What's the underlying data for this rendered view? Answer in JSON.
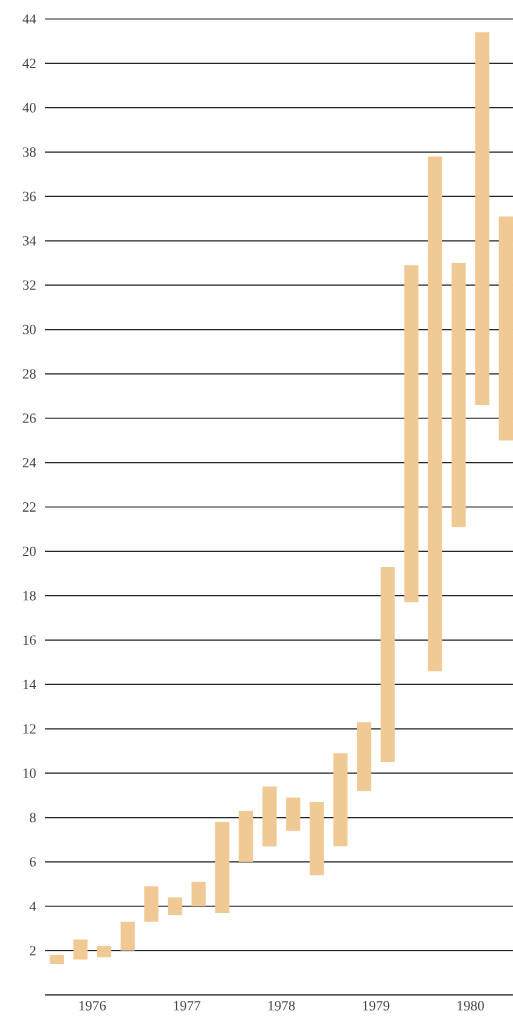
{
  "chart_data": {
    "type": "bar",
    "x": [
      1976.125,
      1976.375,
      1976.625,
      1976.875,
      1977.125,
      1977.375,
      1977.625,
      1977.875,
      1978.125,
      1978.375,
      1978.625,
      1978.875,
      1979.125,
      1979.375,
      1979.625,
      1979.875,
      1980.125,
      1980.375,
      1980.625,
      1980.875
    ],
    "base": [
      1.4,
      1.6,
      1.7,
      2.0,
      3.3,
      3.6,
      4.0,
      3.7,
      6.0,
      6.7,
      7.4,
      5.4,
      6.7,
      9.2,
      10.5,
      17.7,
      14.6,
      21.1,
      26.6,
      25.0
    ],
    "values": [
      0.4,
      0.9,
      0.5,
      1.3,
      1.6,
      0.8,
      1.1,
      4.1,
      2.3,
      2.7,
      1.5,
      3.3,
      4.2,
      3.1,
      8.8,
      15.2,
      23.2,
      11.9,
      16.8,
      10.1
    ],
    "color": "#f0c994",
    "xlim": [
      1976.0,
      1980.95
    ],
    "xticks": [
      {
        "value": 1976.5,
        "label": "1976"
      },
      {
        "value": 1977.5,
        "label": "1977"
      },
      {
        "value": 1978.5,
        "label": "1978"
      },
      {
        "value": 1979.5,
        "label": "1979"
      },
      {
        "value": 1980.5,
        "label": "1980"
      }
    ],
    "ylim": [
      0,
      44
    ],
    "yticks": [
      2,
      4,
      6,
      8,
      10,
      12,
      14,
      16,
      18,
      20,
      22,
      24,
      26,
      28,
      30,
      32,
      34,
      36,
      38,
      40,
      42,
      44
    ],
    "grid": "y"
  }
}
